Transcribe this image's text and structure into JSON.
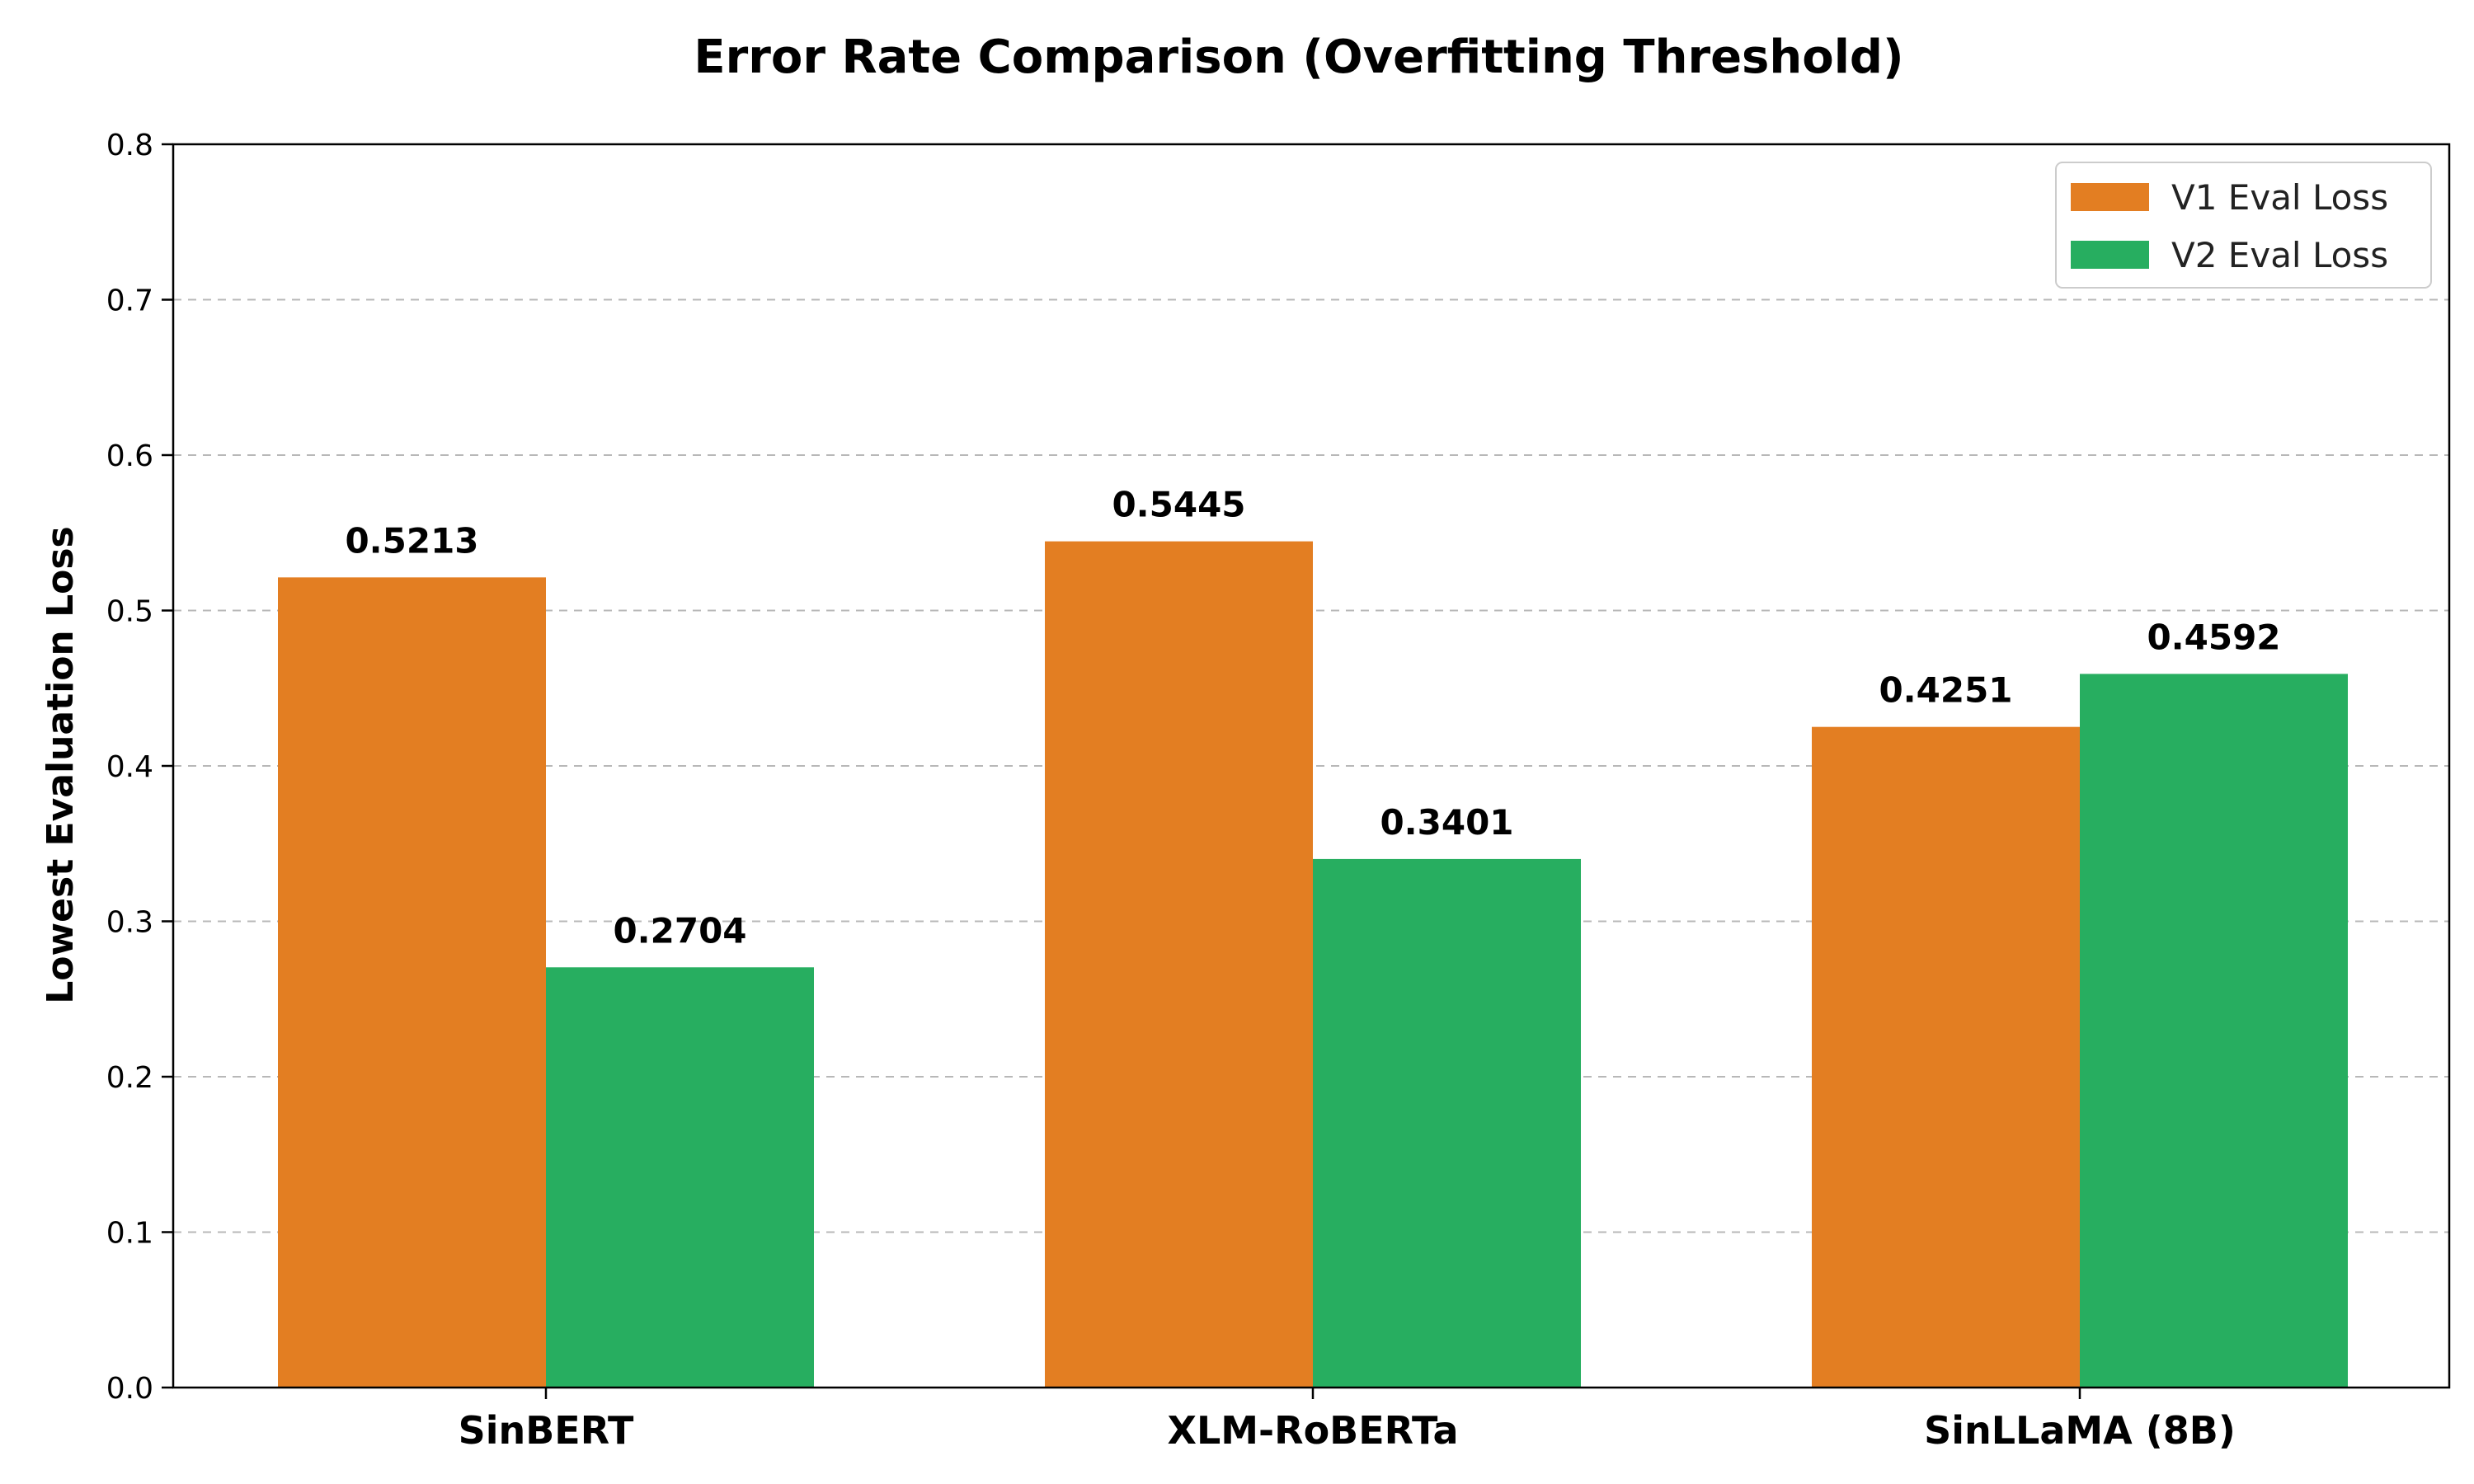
{
  "chart_data": {
    "type": "bar",
    "title": "Error Rate Comparison (Overfitting Threshold)",
    "xlabel": "",
    "ylabel": "Lowest Evaluation Loss",
    "categories": [
      "SinBERT",
      "XLM-RoBERTa",
      "SinLLaMA (8B)"
    ],
    "series": [
      {
        "name": "V1 Eval Loss",
        "color": "#E37E22",
        "values": [
          0.5213,
          0.5445,
          0.4251
        ],
        "labels": [
          "0.5213",
          "0.5445",
          "0.4251"
        ]
      },
      {
        "name": "V2 Eval Loss",
        "color": "#27AE60",
        "values": [
          0.2704,
          0.3401,
          0.4592
        ],
        "labels": [
          "0.2704",
          "0.3401",
          "0.4592"
        ]
      }
    ],
    "ylim": [
      0.0,
      0.8
    ],
    "yticks": [
      0.0,
      0.1,
      0.2,
      0.3,
      0.4,
      0.5,
      0.6,
      0.7,
      0.8
    ],
    "ytick_labels": [
      "0.0",
      "0.1",
      "0.2",
      "0.3",
      "0.4",
      "0.5",
      "0.6",
      "0.7",
      "0.8"
    ],
    "grid": "y-dashed",
    "legend_position": "top-right"
  }
}
